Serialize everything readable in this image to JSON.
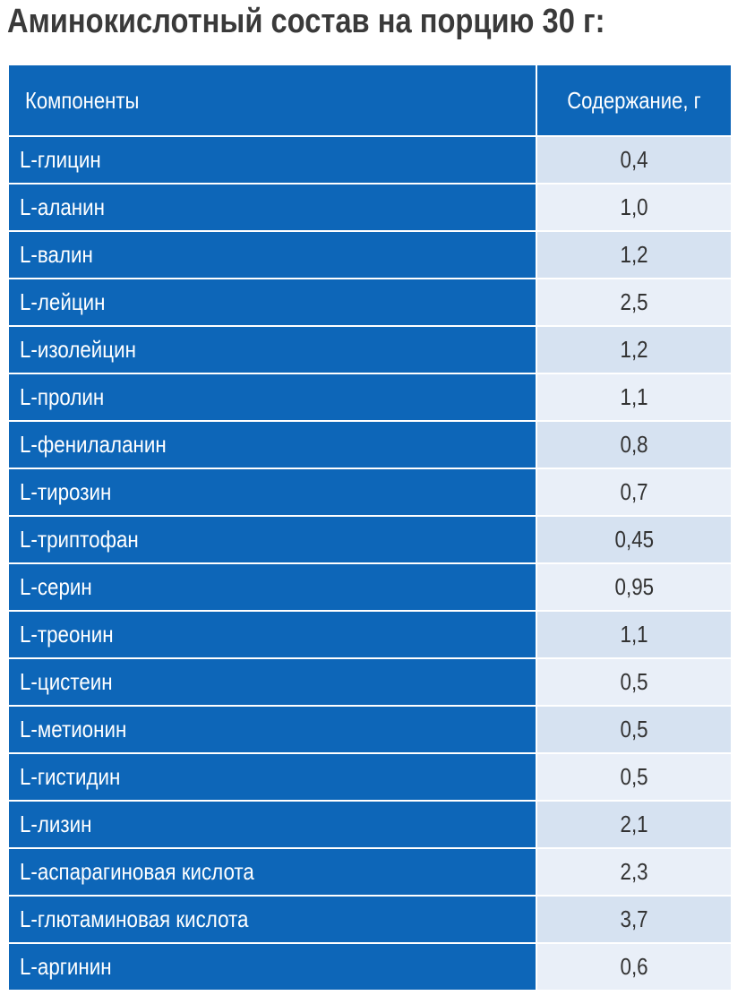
{
  "title": "Аминокислотный состав на порцию 30 г:",
  "table": {
    "headers": {
      "component": "Компоненты",
      "content": "Содержание, г"
    },
    "rows": [
      {
        "name": "L-глицин",
        "value": "0,4"
      },
      {
        "name": "L-аланин",
        "value": "1,0"
      },
      {
        "name": "L-валин",
        "value": "1,2"
      },
      {
        "name": "L-лейцин",
        "value": "2,5"
      },
      {
        "name": "L-изолейцин",
        "value": "1,2"
      },
      {
        "name": "L-пролин",
        "value": "1,1"
      },
      {
        "name": "L-фенилаланин",
        "value": "0,8"
      },
      {
        "name": "L-тирозин",
        "value": "0,7"
      },
      {
        "name": "L-триптофан",
        "value": "0,45"
      },
      {
        "name": "L-серин",
        "value": "0,95"
      },
      {
        "name": "L-треонин",
        "value": "1,1"
      },
      {
        "name": "L-цистеин",
        "value": "0,5"
      },
      {
        "name": "L-метионин",
        "value": "0,5"
      },
      {
        "name": "L-гистидин",
        "value": "0,5"
      },
      {
        "name": "L-лизин",
        "value": "2,1"
      },
      {
        "name": "L-аспарагиновая кислота",
        "value": "2,3"
      },
      {
        "name": "L-глютаминовая кислота",
        "value": "3,7"
      },
      {
        "name": "L-аргинин",
        "value": "0,6"
      }
    ]
  },
  "colors": {
    "header_blue": "#0d66b8",
    "value_cell_odd": "#d6e2f1",
    "value_cell_even": "#e9eff8",
    "title_text": "#3a3a3a"
  }
}
